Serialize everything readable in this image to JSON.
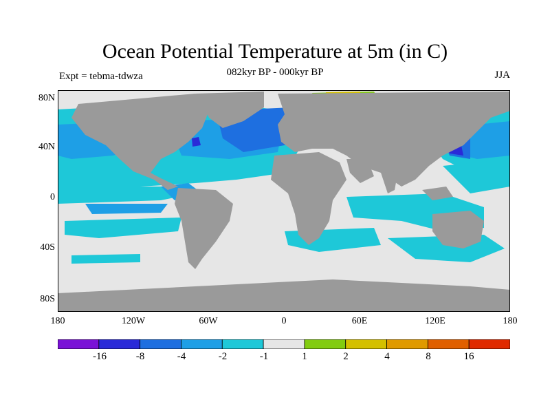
{
  "title": "Ocean Potential Temperature at 5m (in C)",
  "subtitle": "082kyr BP - 000kyr BP",
  "expt_label": "Expt = tebma-tdwza",
  "season": "JJA",
  "lat_labels": [
    "80N",
    "40N",
    "0",
    "40S",
    "80S"
  ],
  "lon_labels": [
    "180",
    "120W",
    "60W",
    "0",
    "60E",
    "120E",
    "180"
  ],
  "colorbar": {
    "labels": [
      "-16",
      "-8",
      "-4",
      "-2",
      "-1",
      "1",
      "2",
      "4",
      "8",
      "16"
    ],
    "colors": [
      "#7a12d6",
      "#2a2ad8",
      "#1e6fe0",
      "#1e9fe6",
      "#1ec8d8",
      "#e6e6e6",
      "#82cc10",
      "#d4c000",
      "#e09a00",
      "#e06000",
      "#e02a00"
    ]
  },
  "map_colors": {
    "land": "#9a9a9a",
    "ocean_neutral": "#e6e6e6",
    "cool_1": "#1ec8d8",
    "cool_2": "#1e9fe6",
    "cool_3": "#1e6fe0",
    "cool_4": "#2a2ad8",
    "warm_1": "#82cc10",
    "warm_2": "#d4c000"
  }
}
